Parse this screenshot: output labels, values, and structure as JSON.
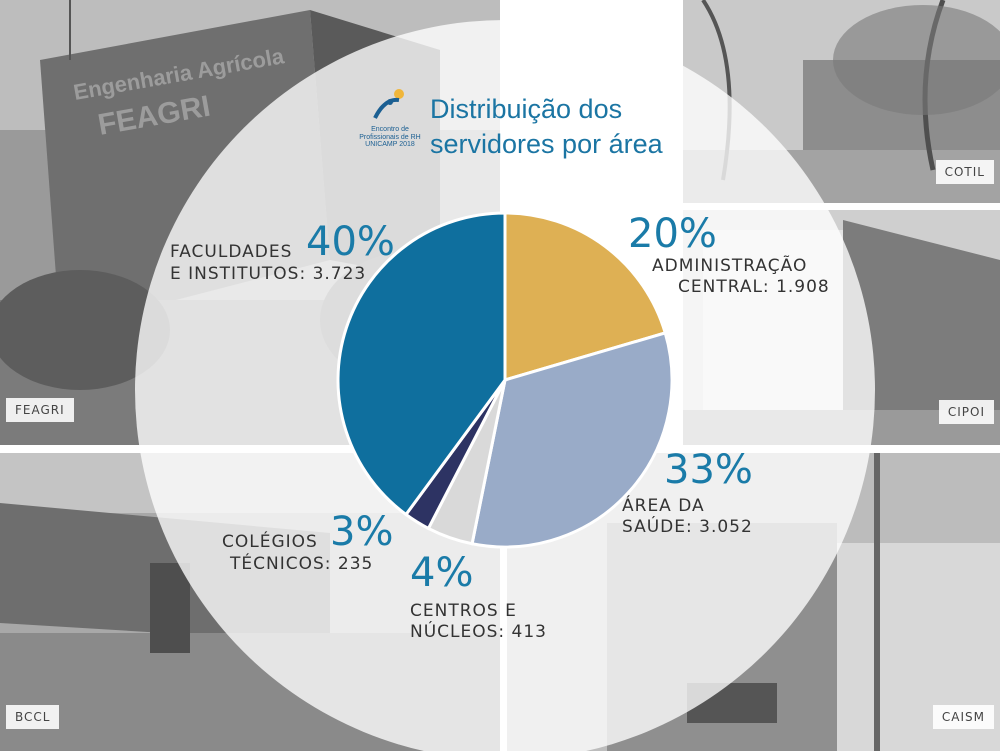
{
  "title_line1": "Distribuição dos",
  "title_line2": "servidores por área",
  "logo": {
    "line1": "Encontro de",
    "line2": "Profissionais de RH",
    "line3": "UNICAMP 2018"
  },
  "photos": [
    {
      "label": "FEAGRI"
    },
    {
      "label": "COTIL"
    },
    {
      "label": "CIPOI"
    },
    {
      "label": "BCCL"
    },
    {
      "label": "CAISM"
    }
  ],
  "building_sign": {
    "line1": "Engenharia Agrícola",
    "line2": "FEAGRI"
  },
  "colors": {
    "administracao": "#deb054",
    "saude": "#99abc8",
    "centros": "#d9d9d9",
    "colegios": "#2d3363",
    "faculdades": "#0f6f9e",
    "pct_text": "#1a7ba8"
  },
  "chart_data": {
    "type": "pie",
    "title": "Distribuição dos servidores por área",
    "slices": [
      {
        "pct_label": "20%",
        "label_line1": "ADMINISTRAÇÃO",
        "label_line2": "CENTRAL: 1.908",
        "value": 1908,
        "color": "#deb054"
      },
      {
        "pct_label": "33%",
        "label_line1": "ÁREA DA",
        "label_line2": "SAÚDE: 3.052",
        "value": 3052,
        "color": "#99abc8"
      },
      {
        "pct_label": "4%",
        "label_line1": "CENTROS E",
        "label_line2": "NÚCLEOS: 413",
        "value": 413,
        "color": "#d9d9d9"
      },
      {
        "pct_label": "3%",
        "label_line1": "COLÉGIOS",
        "label_line2": "TÉCNICOS: 235",
        "value": 235,
        "color": "#2d3363"
      },
      {
        "pct_label": "40%",
        "label_line1": "FACULDADES",
        "label_line2": "E INSTITUTOS: 3.723",
        "value": 3723,
        "color": "#0f6f9e"
      }
    ]
  }
}
